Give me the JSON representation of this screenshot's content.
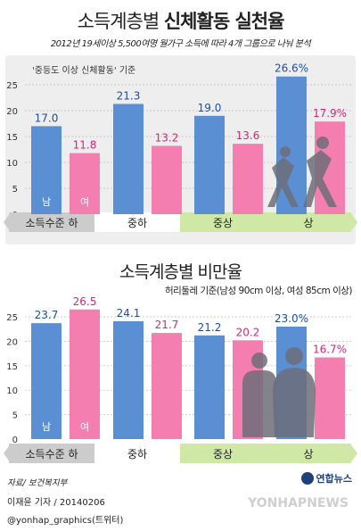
{
  "header": {
    "title_normal": "소득계층별 ",
    "title_bold": "신체활동 실천율",
    "subtitle": "2012년 19세이상 5,500여명 월가구 소득에 따라 4개 그룹으로 나눠 분석"
  },
  "chart2_header": {
    "title": "소득계층별 비만율",
    "subtitle": "허리둘레 기준(남성 90cm 이상, 여성 85cm 이상)"
  },
  "footer": {
    "source": "자료/ 보건복지부",
    "reporter": "이재윤 기자 / 20140206",
    "handle": "@yonhap_graphics(트위터)",
    "logo": "연합뉴스",
    "watermark": "YONHAPNEWS"
  },
  "colors": {
    "male": "#5b8fd4",
    "female": "#f47eb0",
    "female_label": "#d6267a",
    "band_gray": "#cccccc",
    "band_green": "#cfe8a6"
  },
  "chart_data": [
    {
      "type": "bar",
      "title": "소득계층별 신체활동 실천율",
      "note": "'중등도 이상 신체활동' 기준",
      "categories": [
        "소득수준 하",
        "중하",
        "중상",
        "상"
      ],
      "series": [
        {
          "name": "남",
          "values": [
            17.0,
            21.3,
            19.0,
            26.6
          ]
        },
        {
          "name": "여",
          "values": [
            11.8,
            13.2,
            13.6,
            17.9
          ]
        }
      ],
      "value_labels": {
        "남": [
          "17.0",
          "21.3",
          "19.0",
          "26.6%"
        ],
        "여": [
          "11.8",
          "13.2",
          "13.6",
          "17.9%"
        ]
      },
      "yticks": [
        0,
        5,
        10,
        15,
        20,
        25
      ],
      "ylim": [
        0,
        27
      ],
      "grid": true
    },
    {
      "type": "bar",
      "title": "소득계층별 비만율",
      "categories": [
        "소득수준 하",
        "중하",
        "중상",
        "상"
      ],
      "series": [
        {
          "name": "남",
          "values": [
            23.7,
            24.1,
            21.2,
            23.0
          ]
        },
        {
          "name": "여",
          "values": [
            26.5,
            21.7,
            20.2,
            16.7
          ]
        }
      ],
      "value_labels": {
        "남": [
          "23.7",
          "24.1",
          "21.2",
          "23.0%"
        ],
        "여": [
          "26.5",
          "21.7",
          "20.2",
          "16.7%"
        ]
      },
      "yticks": [
        0,
        5,
        10,
        15,
        20,
        25
      ],
      "ylim": [
        0,
        27
      ],
      "grid": true
    }
  ]
}
